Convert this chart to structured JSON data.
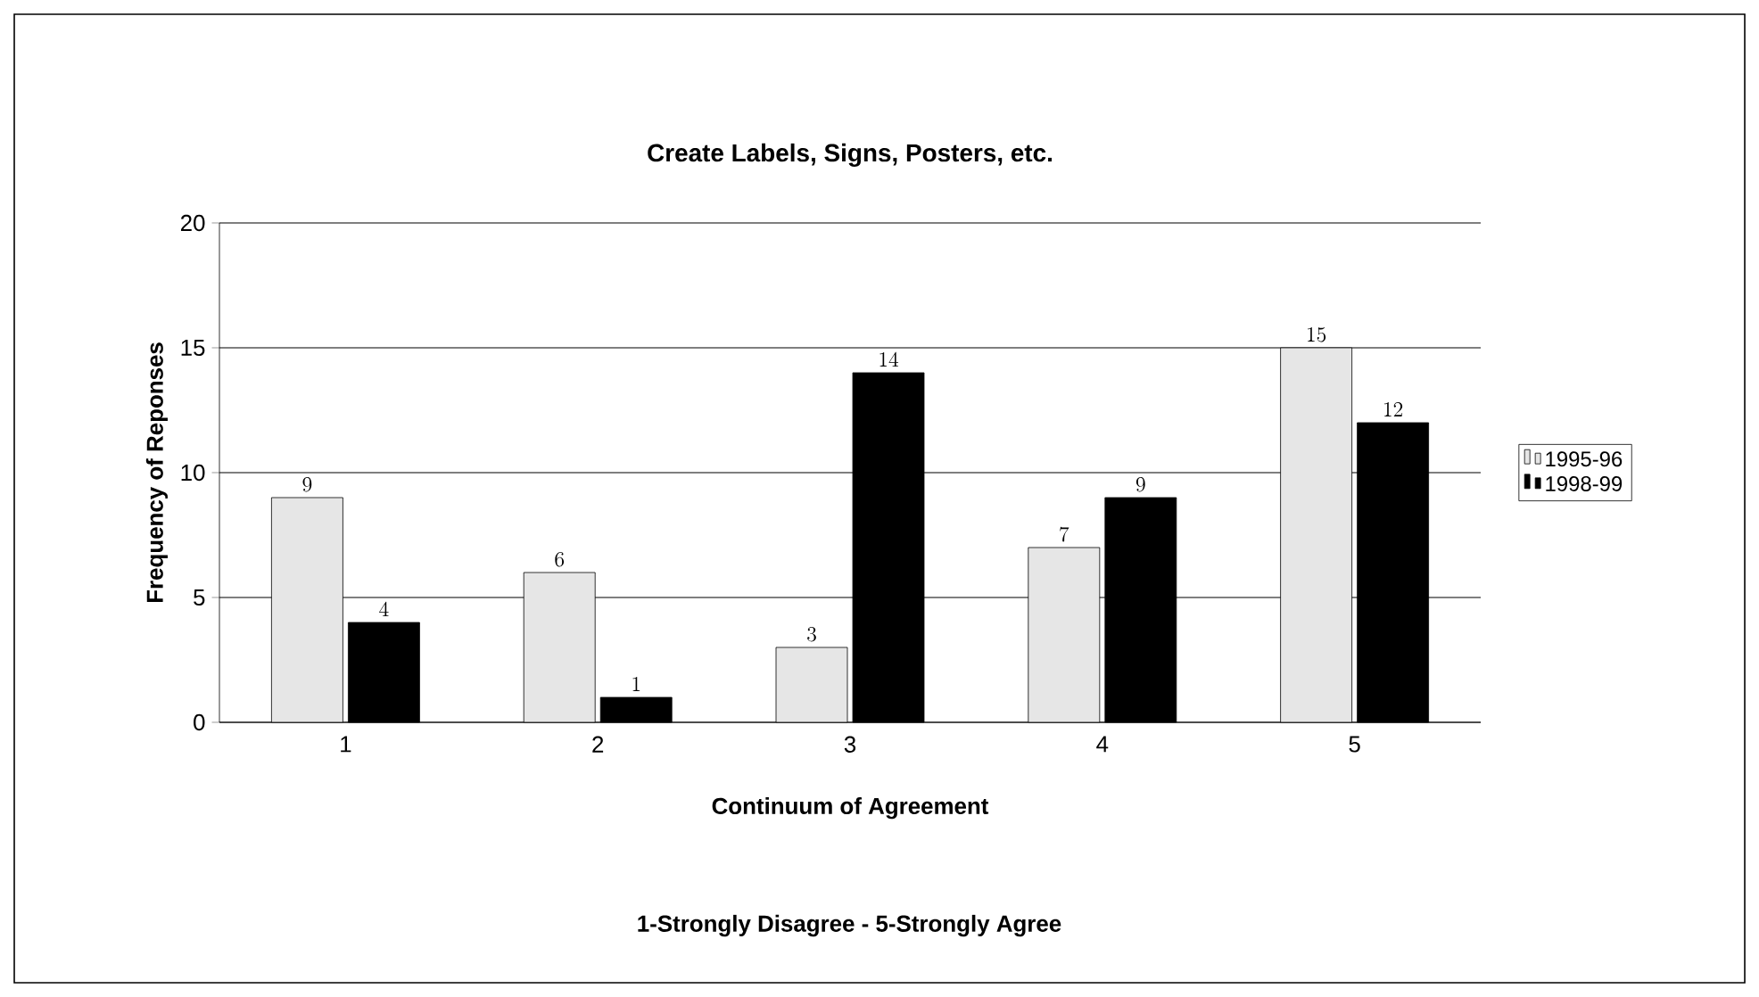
{
  "chart_data": {
    "type": "bar",
    "title": "Create Labels, Signs, Posters, etc.",
    "xlabel": "Continuum of Agreement",
    "ylabel": "Frequency of Reponses",
    "annotations": [
      "1-Strongly Disagree -  5-Strongly Agree"
    ],
    "categories": [
      "1",
      "2",
      "3",
      "4",
      "5"
    ],
    "series": [
      {
        "name": "1995-96",
        "color": "#e6e6e6",
        "values": [
          9,
          6,
          3,
          7,
          15
        ]
      },
      {
        "name": "1998-99",
        "color": "#000000",
        "values": [
          4,
          1,
          14,
          9,
          12
        ]
      }
    ],
    "ylim": [
      0,
      20
    ],
    "yticks": [
      0,
      5,
      10,
      15,
      20
    ],
    "grid": "y",
    "legend": "right",
    "data_labels": true
  }
}
